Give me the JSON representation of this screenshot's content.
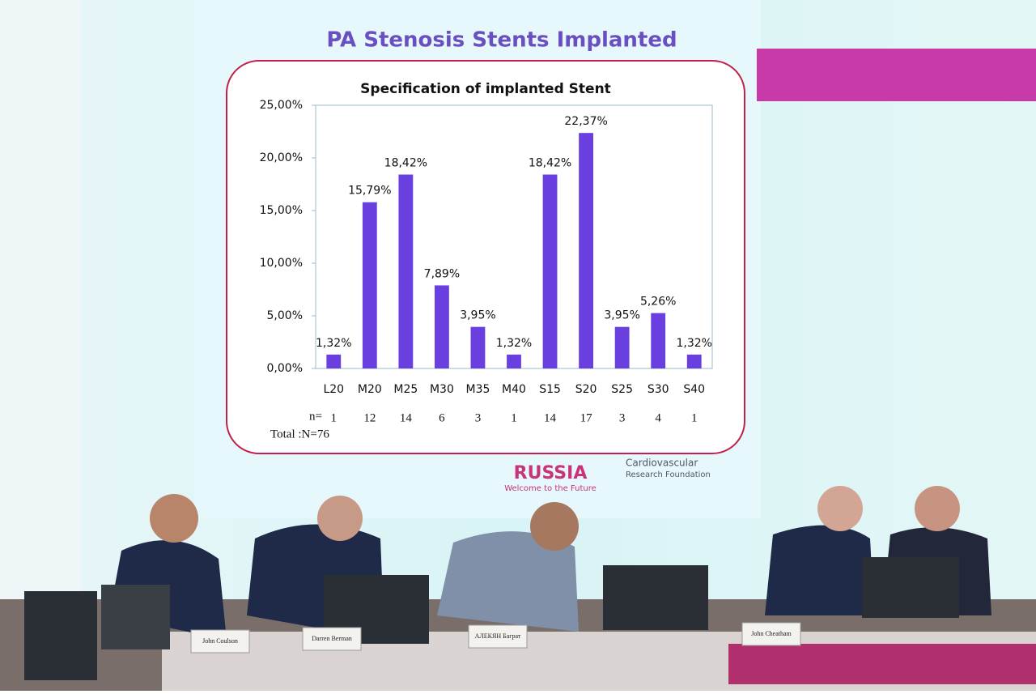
{
  "slide_title": "PA Stenosis Stents Implanted",
  "chart_data": {
    "type": "bar",
    "title": "Specification of implanted Stent",
    "categories": [
      "L20",
      "M20",
      "M25",
      "M30",
      "M35",
      "M40",
      "S15",
      "S20",
      "S25",
      "S30",
      "S40"
    ],
    "values": [
      1.32,
      15.79,
      18.42,
      7.89,
      3.95,
      1.32,
      18.42,
      22.37,
      3.95,
      5.26,
      1.32
    ],
    "value_labels": [
      "1,32%",
      "15,79%",
      "18,42%",
      "7,89%",
      "3,95%",
      "1,32%",
      "18,42%",
      "22,37%",
      "3,95%",
      "5,26%",
      "1,32%"
    ],
    "color": "#6a3fe0",
    "ylim": [
      0,
      25
    ],
    "yticks": [
      {
        "value": 0,
        "label": "0,00%"
      },
      {
        "value": 5,
        "label": "5,00%"
      },
      {
        "value": 10,
        "label": "10,00%"
      },
      {
        "value": 15,
        "label": "15,00%"
      },
      {
        "value": 20,
        "label": "20,00%"
      },
      {
        "value": 25,
        "label": "25,00%"
      }
    ],
    "grid": false
  },
  "counts_label": "n=",
  "counts": [
    "1",
    "12",
    "14",
    "6",
    "3",
    "1",
    "14",
    "17",
    "3",
    "4",
    "1"
  ],
  "total": "Total :N=76",
  "logos": {
    "country": "RUSSIA",
    "tagline": "Welcome to the Future",
    "foundation": "Cardiovascular",
    "foundation_2": "Research Foundation"
  },
  "name_cards": [
    "John Coulson",
    "Darren Berman",
    "АЛЕКЯН Баграт",
    "John Cheatham"
  ]
}
